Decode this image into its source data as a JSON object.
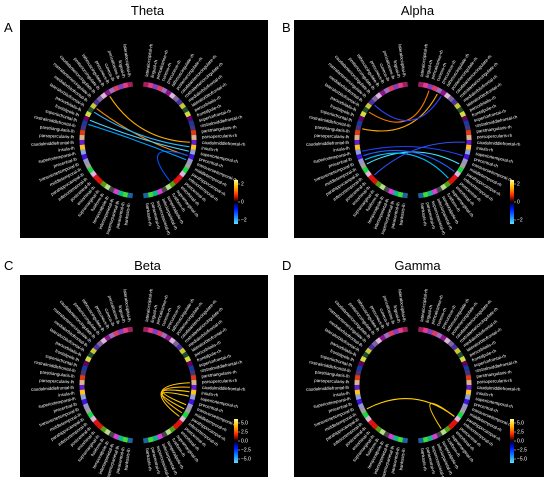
{
  "panels": [
    {
      "letter": "A",
      "title": "Theta",
      "colorbar_ticks": [
        "2",
        "0",
        "−2"
      ]
    },
    {
      "letter": "B",
      "title": "Alpha",
      "colorbar_ticks": [
        "2",
        "0",
        "−2"
      ]
    },
    {
      "letter": "C",
      "title": "Beta",
      "colorbar_ticks": [
        "5.0",
        "2.5",
        "0.0",
        "−2.5",
        "−5.0"
      ]
    },
    {
      "letter": "D",
      "title": "Gamma",
      "colorbar_ticks": [
        "5.0",
        "2.5",
        "0.0",
        "−2.5",
        "−5.0"
      ]
    }
  ],
  "labels_rh": [
    "lateraloccipital-rh",
    "lingual-rh",
    "pericalcarine-rh",
    "cuneus-rh",
    "precuneus-rh",
    "isthmuscingulate-rh",
    "posteriorcingulate-rh",
    "caudalanteriorcingulate-rh",
    "rostralanteriorcingulate-rh",
    "medialorbitofrontal-rh",
    "lateralorbitofrontal-rh",
    "parsorbitalis-rh",
    "frontalpole-rh",
    "superiorfrontal-rh",
    "rostralmiddlefrontal-rh",
    "parstriangularis-rh",
    "parsopercularis-rh",
    "caudalmiddlefrontal-rh",
    "insula-rh",
    "superiortemporal-rh",
    "precentral-rh",
    "transversetemporal-rh",
    "middletemporal-rh",
    "parahippocampal-rh",
    "inferiortemporal-rh",
    "postcentral-rh",
    "entorhinal-rh",
    "supramarginal-rh",
    "fusiform-rh",
    "temporalpole-rh",
    "inferiorparietal-rh",
    "superiorparietal-rh",
    "paracentral-rh",
    "bankssts-rh"
  ],
  "labels_lh": [
    "lateraloccipital-lh",
    "lingual-lh",
    "pericalcarine-lh",
    "cuneus-lh",
    "precuneus-lh",
    "isthmuscingulate-lh",
    "posteriorcingulate-lh",
    "caudalanteriorcingulate-lh",
    "rostralanteriorcingulate-lh",
    "medialorbitofrontal-lh",
    "lateralorbitofrontal-lh",
    "parsorbitalis-lh",
    "frontalpole-lh",
    "superiorfrontal-lh",
    "rostralmiddlefrontal-lh",
    "parstriangularis-lh",
    "parsopercularis-lh",
    "caudalmiddlefrontal-lh",
    "insula-lh",
    "superiortemporal-lh",
    "precentral-lh",
    "transversetemporal-lh",
    "middletemporal-lh",
    "parahippocampal-lh",
    "inferiortemporal-lh",
    "postcentral-lh",
    "entorhinal-lh",
    "supramarginal-lh",
    "fusiform-lh",
    "temporalpole-lh",
    "inferiorparietal-lh",
    "superiorparietal-lh",
    "paracentral-lh",
    "bankssts-lh"
  ],
  "node_colors": [
    "#9f1f5f",
    "#e23c8b",
    "#7f3fbf",
    "#dc3c64",
    "#a06cbf",
    "#8c148c",
    "#dcb4dc",
    "#7d64a0",
    "#4b32a0",
    "#c8c832",
    "#234b32",
    "#d2dc3c",
    "#640064",
    "#143ca0",
    "#4b3278",
    "#dc3c14",
    "#dcb48c",
    "#641ecd",
    "#ffc020",
    "#8ca0dc",
    "#3c14dc",
    "#9696c8",
    "#a0a0a0",
    "#14dc3c",
    "#dcb4dc",
    "#dc1414",
    "#dc140a",
    "#50a014",
    "#b4dc8c",
    "#464646",
    "#dc3cdc",
    "#14b48c",
    "#3cdc3c",
    "#19649f"
  ],
  "connections": [
    [
      {
        "a": "R17",
        "b": "L5",
        "color": "#ffb000"
      },
      {
        "a": "R20",
        "b": "L9",
        "color": "#ff8800"
      },
      {
        "a": "R19",
        "b": "L12",
        "color": "#4fd0ff"
      },
      {
        "a": "R18",
        "b": "L10",
        "color": "#2bb7ff"
      },
      {
        "a": "R20",
        "b": "R27",
        "color": "#0050ff"
      },
      {
        "a": "R21",
        "b": "L13",
        "color": "#00a0ff"
      }
    ],
    [
      {
        "a": "R2",
        "b": "L10",
        "color": "#ff7700"
      },
      {
        "a": "R4",
        "b": "L14",
        "color": "#ffaa00"
      },
      {
        "a": "R5",
        "b": "L8",
        "color": "#3040ff"
      },
      {
        "a": "R20",
        "b": "L19",
        "color": "#2040ff"
      },
      {
        "a": "R22",
        "b": "L22",
        "color": "#40e0ff"
      },
      {
        "a": "R24",
        "b": "L20",
        "color": "#2060ff"
      },
      {
        "a": "R26",
        "b": "L21",
        "color": "#00c0ff"
      },
      {
        "a": "R17",
        "b": "L25",
        "color": "#3050ff"
      }
    ],
    [
      {
        "a": "R18",
        "b": "R21",
        "color": "#ffcc00"
      },
      {
        "a": "R17",
        "b": "R23",
        "color": "#ffb000"
      },
      {
        "a": "R19",
        "b": "R22",
        "color": "#ffd000"
      },
      {
        "a": "R16",
        "b": "R24",
        "color": "#ffc800"
      }
    ],
    [
      {
        "a": "R24",
        "b": "L22",
        "color": "#ffd000"
      },
      {
        "a": "R24",
        "b": "R28",
        "color": "#ffc000"
      }
    ]
  ]
}
